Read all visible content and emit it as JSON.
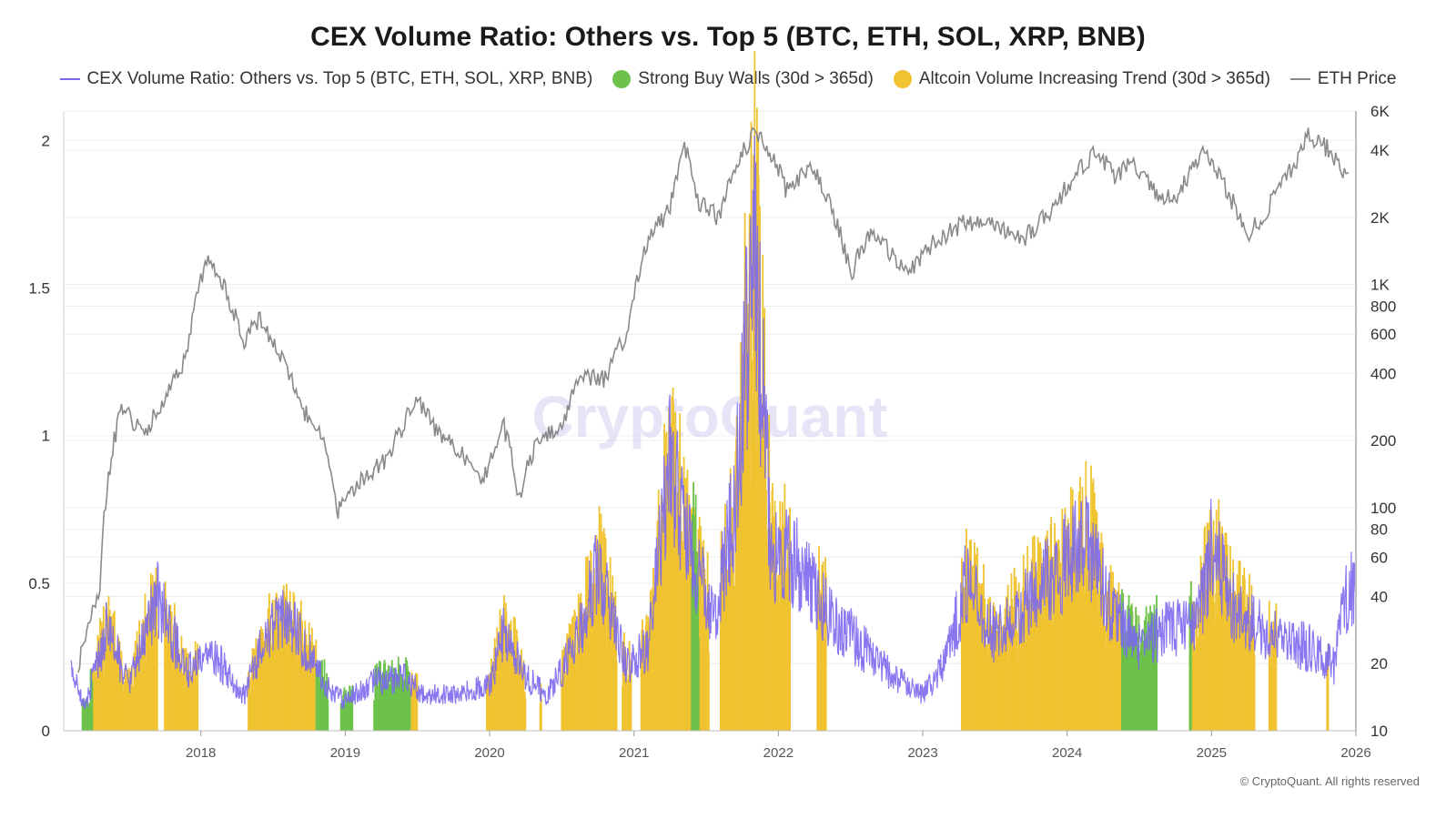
{
  "chart_data": {
    "type": "bar+line",
    "title": "CEX Volume Ratio: Others vs. Top 5 (BTC, ETH, SOL, XRP, BNB)",
    "legend": [
      {
        "label": "CEX Volume Ratio: Others vs. Top 5 (BTC, ETH, SOL, XRP, BNB)",
        "kind": "line",
        "color": "#7b68ee"
      },
      {
        "label": "Strong Buy Walls (30d > 365d)",
        "kind": "dot",
        "color": "#6cc24a"
      },
      {
        "label": "Altcoin Volume Increasing Trend (30d > 365d)",
        "kind": "dot",
        "color": "#f0c330"
      },
      {
        "label": "ETH Price",
        "kind": "line",
        "color": "#8a8a8a"
      }
    ],
    "x_range": [
      2017.05,
      2026.0
    ],
    "x_ticks": [
      "2018",
      "2019",
      "2020",
      "2021",
      "2022",
      "2023",
      "2024",
      "2025",
      "2026"
    ],
    "y_left": {
      "range": [
        0,
        2.1
      ],
      "ticks": [
        "0",
        "0.5",
        "1",
        "1.5",
        "2"
      ],
      "tick_values": [
        0,
        0.5,
        1,
        1.5,
        2
      ]
    },
    "y_right": {
      "scale": "log",
      "range": [
        10,
        6000
      ],
      "ticks": [
        "10",
        "20",
        "40",
        "60",
        "80",
        "100",
        "200",
        "400",
        "600",
        "800",
        "1K",
        "2K",
        "4K",
        "6K"
      ],
      "tick_values": [
        10,
        20,
        40,
        60,
        80,
        100,
        200,
        400,
        600,
        800,
        1000,
        2000,
        4000,
        6000
      ]
    },
    "ratio_series": {
      "name": "CEX Volume Ratio: Others vs. Top 5 (BTC, ETH, SOL, XRP, BNB)",
      "points": [
        [
          2017.1,
          0.2
        ],
        [
          2017.2,
          0.08
        ],
        [
          2017.35,
          0.35
        ],
        [
          2017.5,
          0.15
        ],
        [
          2017.7,
          0.45
        ],
        [
          2017.9,
          0.2
        ],
        [
          2018.1,
          0.25
        ],
        [
          2018.3,
          0.12
        ],
        [
          2018.45,
          0.32
        ],
        [
          2018.6,
          0.38
        ],
        [
          2018.75,
          0.26
        ],
        [
          2018.9,
          0.13
        ],
        [
          2019.0,
          0.1
        ],
        [
          2019.2,
          0.17
        ],
        [
          2019.4,
          0.18
        ],
        [
          2019.55,
          0.12
        ],
        [
          2019.8,
          0.13
        ],
        [
          2020.0,
          0.15
        ],
        [
          2020.1,
          0.35
        ],
        [
          2020.25,
          0.18
        ],
        [
          2020.4,
          0.12
        ],
        [
          2020.6,
          0.3
        ],
        [
          2020.75,
          0.55
        ],
        [
          2020.95,
          0.22
        ],
        [
          2021.1,
          0.28
        ],
        [
          2021.25,
          0.9
        ],
        [
          2021.4,
          0.6
        ],
        [
          2021.55,
          0.38
        ],
        [
          2021.7,
          0.75
        ],
        [
          2021.83,
          1.65
        ],
        [
          2021.95,
          0.62
        ],
        [
          2022.15,
          0.55
        ],
        [
          2022.35,
          0.4
        ],
        [
          2022.55,
          0.3
        ],
        [
          2022.8,
          0.18
        ],
        [
          2023.0,
          0.12
        ],
        [
          2023.15,
          0.22
        ],
        [
          2023.3,
          0.5
        ],
        [
          2023.5,
          0.32
        ],
        [
          2023.75,
          0.45
        ],
        [
          2023.95,
          0.55
        ],
        [
          2024.15,
          0.65
        ],
        [
          2024.3,
          0.4
        ],
        [
          2024.5,
          0.28
        ],
        [
          2024.7,
          0.35
        ],
        [
          2024.9,
          0.35
        ],
        [
          2025.0,
          0.62
        ],
        [
          2025.15,
          0.42
        ],
        [
          2025.3,
          0.35
        ],
        [
          2025.5,
          0.3
        ],
        [
          2025.7,
          0.28
        ],
        [
          2025.85,
          0.22
        ],
        [
          2025.95,
          0.5
        ]
      ]
    },
    "eth_price": {
      "name": "ETH Price",
      "points": [
        [
          2017.15,
          18
        ],
        [
          2017.3,
          45
        ],
        [
          2017.45,
          280
        ],
        [
          2017.6,
          210
        ],
        [
          2017.75,
          300
        ],
        [
          2017.9,
          470
        ],
        [
          2018.05,
          1300
        ],
        [
          2018.2,
          850
        ],
        [
          2018.3,
          560
        ],
        [
          2018.4,
          700
        ],
        [
          2018.55,
          470
        ],
        [
          2018.7,
          280
        ],
        [
          2018.85,
          200
        ],
        [
          2018.95,
          95
        ],
        [
          2019.1,
          130
        ],
        [
          2019.3,
          170
        ],
        [
          2019.5,
          300
        ],
        [
          2019.65,
          210
        ],
        [
          2019.8,
          180
        ],
        [
          2019.95,
          130
        ],
        [
          2020.1,
          230
        ],
        [
          2020.2,
          110
        ],
        [
          2020.35,
          210
        ],
        [
          2020.5,
          240
        ],
        [
          2020.65,
          390
        ],
        [
          2020.8,
          380
        ],
        [
          2020.95,
          600
        ],
        [
          2021.1,
          1600
        ],
        [
          2021.25,
          2200
        ],
        [
          2021.35,
          4200
        ],
        [
          2021.45,
          2300
        ],
        [
          2021.6,
          2000
        ],
        [
          2021.7,
          3300
        ],
        [
          2021.83,
          4800
        ],
        [
          2021.95,
          3900
        ],
        [
          2022.05,
          2700
        ],
        [
          2022.25,
          3300
        ],
        [
          2022.4,
          1900
        ],
        [
          2022.5,
          1100
        ],
        [
          2022.65,
          1800
        ],
        [
          2022.8,
          1300
        ],
        [
          2022.95,
          1200
        ],
        [
          2023.1,
          1600
        ],
        [
          2023.3,
          1900
        ],
        [
          2023.5,
          1850
        ],
        [
          2023.7,
          1600
        ],
        [
          2023.9,
          2200
        ],
        [
          2024.2,
          3900
        ],
        [
          2024.35,
          3000
        ],
        [
          2024.45,
          3700
        ],
        [
          2024.6,
          2600
        ],
        [
          2024.75,
          2400
        ],
        [
          2024.95,
          3900
        ],
        [
          2025.1,
          2700
        ],
        [
          2025.25,
          1600
        ],
        [
          2025.45,
          2500
        ],
        [
          2025.6,
          3700
        ],
        [
          2025.67,
          4600
        ],
        [
          2025.8,
          4100
        ],
        [
          2025.95,
          3000
        ]
      ]
    },
    "strong_buy_walls": {
      "name": "Strong Buy Walls (30d > 365d)",
      "periods": [
        [
          2017.18,
          2017.25
        ],
        [
          2018.8,
          2018.88
        ],
        [
          2018.97,
          2019.05
        ],
        [
          2019.2,
          2019.45
        ],
        [
          2021.4,
          2021.45
        ],
        [
          2024.38,
          2024.62
        ],
        [
          2024.85,
          2024.86
        ]
      ]
    },
    "altcoin_trend": {
      "name": "Altcoin Volume Increasing Trend (30d > 365d)",
      "periods": [
        [
          2017.25,
          2017.7
        ],
        [
          2017.75,
          2017.98
        ],
        [
          2018.33,
          2018.8
        ],
        [
          2019.45,
          2019.5
        ],
        [
          2019.98,
          2020.25
        ],
        [
          2020.35,
          2020.36
        ],
        [
          2020.5,
          2020.88
        ],
        [
          2020.92,
          2020.98
        ],
        [
          2021.05,
          2021.52
        ],
        [
          2021.6,
          2022.08
        ],
        [
          2022.27,
          2022.33
        ],
        [
          2023.27,
          2024.38
        ],
        [
          2024.4,
          2024.5
        ],
        [
          2024.85,
          2025.3
        ],
        [
          2025.4,
          2025.45
        ],
        [
          2025.8,
          2025.81
        ]
      ]
    },
    "watermark": "CryptoQuant",
    "credit": "© CryptoQuant. All rights reserved"
  }
}
